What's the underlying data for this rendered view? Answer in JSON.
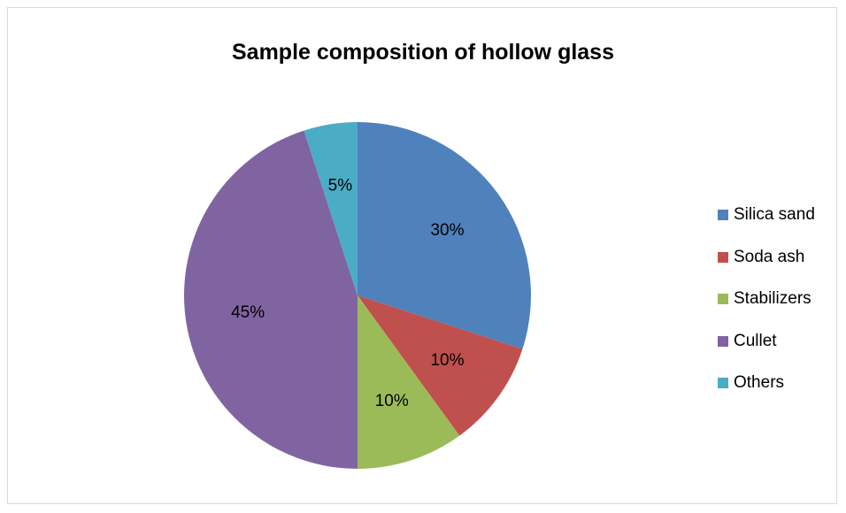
{
  "chart_data": {
    "type": "pie",
    "title": "Sample composition of hollow glass",
    "categories": [
      "Silica sand",
      "Soda ash",
      "Stabilizers",
      "Cullet",
      "Others"
    ],
    "values": [
      30,
      10,
      10,
      45,
      5
    ],
    "data_labels": [
      "30%",
      "10%",
      "10%",
      "45%",
      "5%"
    ],
    "colors": [
      "#4F81BD",
      "#C0504D",
      "#9BBB59",
      "#8064A2",
      "#4BACC6"
    ],
    "legend_position": "right"
  }
}
